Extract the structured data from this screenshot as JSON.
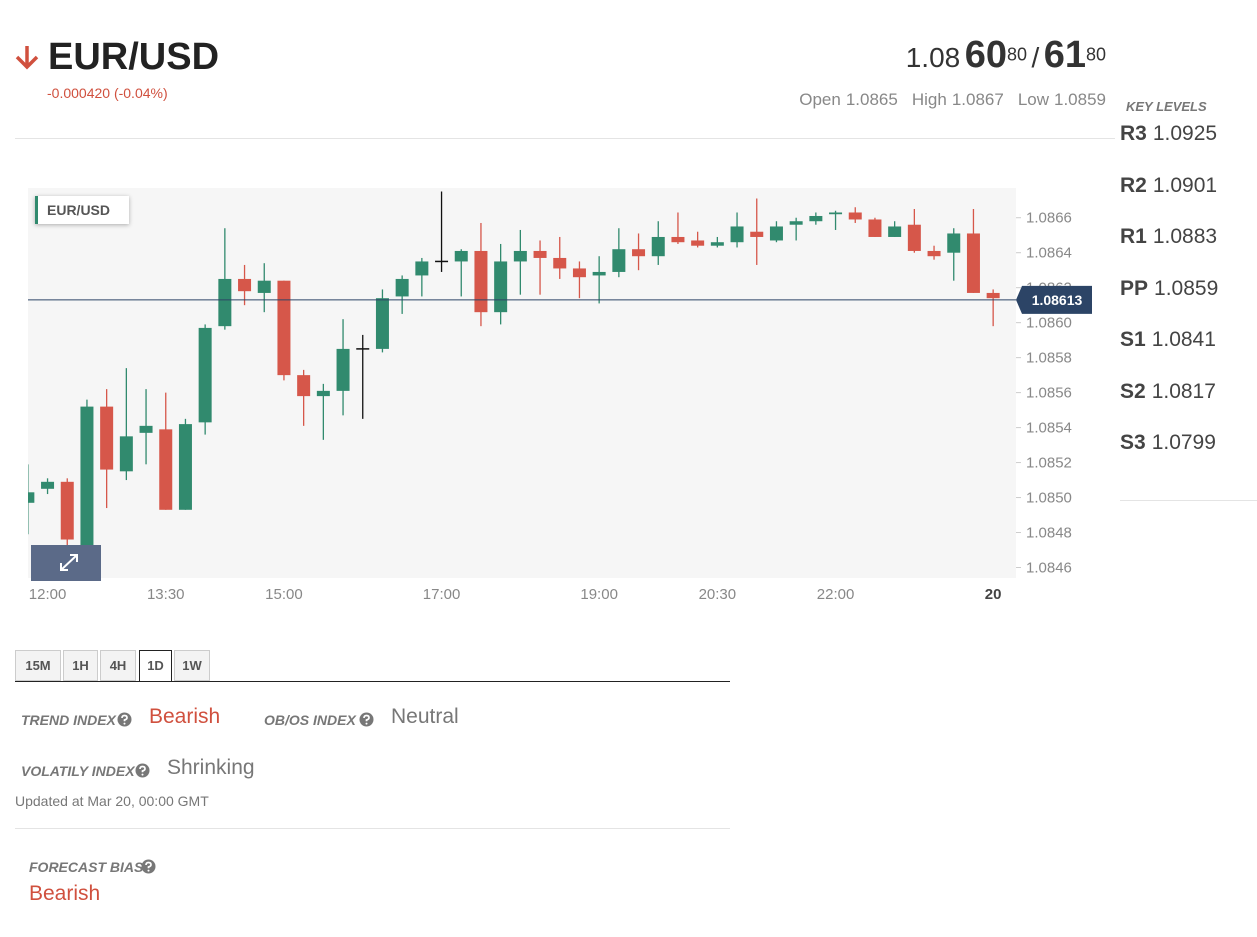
{
  "header": {
    "pair": "EUR/USD",
    "change": "-0.000420 (-0.04%)",
    "price": {
      "big": "1.08",
      "bid_pips": "60",
      "bid_frac": "80",
      "sep": "/",
      "ask_pips": "61",
      "ask_frac": "80"
    },
    "ohl": [
      {
        "label": "Open",
        "value": "1.0865"
      },
      {
        "label": "High",
        "value": "1.0867"
      },
      {
        "label": "Low",
        "value": "1.0859"
      }
    ]
  },
  "key_levels": {
    "title": "KEY LEVELS",
    "levels": [
      {
        "name": "R3",
        "value": "1.0925"
      },
      {
        "name": "R2",
        "value": "1.0901"
      },
      {
        "name": "R1",
        "value": "1.0883"
      },
      {
        "name": "PP",
        "value": "1.0859"
      },
      {
        "name": "S1",
        "value": "1.0841"
      },
      {
        "name": "S2",
        "value": "1.0817"
      },
      {
        "name": "S3",
        "value": "1.0799"
      }
    ]
  },
  "chart_data": {
    "type": "candlestick",
    "title": "EUR/USD",
    "categories": [
      null,
      "12:00",
      null,
      null,
      null,
      null,
      null,
      "13:30",
      null,
      null,
      null,
      null,
      null,
      "15:00",
      null,
      null,
      null,
      null,
      null,
      null,
      null,
      "17:00",
      null,
      null,
      null,
      null,
      null,
      null,
      null,
      "19:00",
      null,
      null,
      null,
      null,
      null,
      "20:30",
      null,
      null,
      null,
      null,
      null,
      "22:00",
      null,
      null,
      null,
      null,
      null,
      null,
      null,
      "20"
    ],
    "open": [
      1.08497,
      1.08505,
      1.08509,
      1.08471,
      1.08552,
      1.08515,
      1.08537,
      1.08539,
      1.08493,
      1.08543,
      1.08598,
      1.08625,
      1.08617,
      1.08624,
      1.0857,
      1.08558,
      1.08561,
      1.08585,
      1.08585,
      1.08615,
      1.08627,
      1.08635,
      1.08635,
      1.08641,
      1.08606,
      1.08635,
      1.08641,
      1.08637,
      1.08631,
      1.08627,
      1.08629,
      1.08642,
      1.08638,
      1.08649,
      1.08647,
      1.08644,
      1.08646,
      1.08652,
      1.08647,
      1.08656,
      1.08658,
      1.08662,
      1.08663,
      1.08659,
      1.08649,
      1.08656,
      1.08641,
      1.0864,
      1.08651,
      1.08617
    ],
    "high": [
      1.08519,
      1.08511,
      1.08511,
      1.08556,
      1.08562,
      1.08574,
      1.08562,
      1.0856,
      1.08545,
      1.08599,
      1.08654,
      1.08633,
      1.08634,
      1.08624,
      1.08573,
      1.08565,
      1.08602,
      1.08593,
      1.08619,
      1.08627,
      1.08637,
      1.08675,
      1.08642,
      1.08657,
      1.08645,
      1.08653,
      1.08647,
      1.08649,
      1.08635,
      1.08638,
      1.08654,
      1.08651,
      1.08658,
      1.08663,
      1.08652,
      1.08649,
      1.08663,
      1.08671,
      1.08658,
      1.0866,
      1.08663,
      1.08664,
      1.08666,
      1.0866,
      1.08658,
      1.08665,
      1.08644,
      1.08654,
      1.08665,
      1.08619
    ],
    "low": [
      1.08479,
      1.08502,
      1.08471,
      1.08467,
      1.08494,
      1.0851,
      1.08519,
      1.08493,
      1.08493,
      1.08536,
      1.08596,
      1.0861,
      1.08606,
      1.08567,
      1.08541,
      1.08533,
      1.08547,
      1.08545,
      1.08583,
      1.08605,
      1.08615,
      1.08629,
      1.08615,
      1.08598,
      1.08599,
      1.08616,
      1.08616,
      1.08625,
      1.08614,
      1.08611,
      1.08626,
      1.0863,
      1.08633,
      1.08645,
      1.08643,
      1.08643,
      1.08643,
      1.08633,
      1.08646,
      1.08647,
      1.08656,
      1.08653,
      1.08657,
      1.08649,
      1.08649,
      1.0864,
      1.08636,
      1.08624,
      1.08617,
      1.08598
    ],
    "close": [
      1.08503,
      1.08509,
      1.08476,
      1.08552,
      1.08516,
      1.08535,
      1.08541,
      1.08493,
      1.08542,
      1.08597,
      1.08625,
      1.08618,
      1.08624,
      1.0857,
      1.08558,
      1.08561,
      1.08585,
      1.08585,
      1.08614,
      1.08625,
      1.08635,
      1.08635,
      1.08641,
      1.08606,
      1.08635,
      1.08641,
      1.08637,
      1.08631,
      1.08626,
      1.08629,
      1.08642,
      1.08638,
      1.08649,
      1.08646,
      1.08644,
      1.08646,
      1.08655,
      1.08649,
      1.08655,
      1.08658,
      1.08661,
      1.08663,
      1.08659,
      1.08649,
      1.08655,
      1.08641,
      1.08638,
      1.08651,
      1.08617,
      1.08614
    ],
    "colors": {
      "up": "#318a6e",
      "down": "#d6574a",
      "flat": "#111111"
    },
    "ylim": [
      1.08454,
      1.08677
    ],
    "yticks": [
      1.0846,
      1.0848,
      {
        "value": 1.085,
        "label": "1.0850"
      },
      1.0852,
      1.0854,
      1.0856,
      1.0858,
      {
        "value": 1.086,
        "label": "1.0860"
      },
      1.0862,
      1.0864,
      1.0866
    ],
    "last": 1.08613,
    "last_color": "#2c4466"
  },
  "timeframes": {
    "tabs": [
      "15M",
      "1H",
      "4H",
      "1D",
      "1W"
    ],
    "active": "1D"
  },
  "indices": [
    {
      "label": "TREND INDEX",
      "value": "Bearish",
      "color": "#d0503e"
    },
    {
      "label": "OB/OS INDEX",
      "value": "Neutral",
      "color": "#777777"
    },
    {
      "label": "VOLATILY INDEX",
      "value": "Shrinking",
      "color": "#777777"
    }
  ],
  "updated": "Updated at Mar 20, 00:00 GMT",
  "forecast": {
    "label": "FORECAST BIAS",
    "value": "Bearish",
    "color": "#d0503e"
  }
}
